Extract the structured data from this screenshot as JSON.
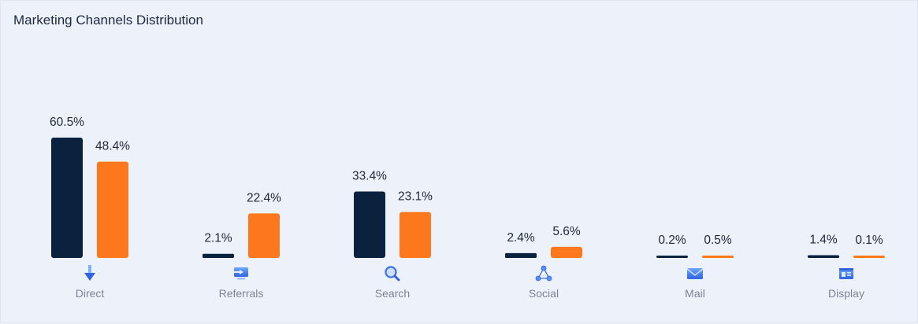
{
  "card": {
    "title": "Marketing Channels Distribution"
  },
  "colors": {
    "series_a": "#0b223f",
    "series_b": "#fd781c",
    "background": "#edf1fa"
  },
  "chart_data": {
    "type": "bar",
    "title": "Marketing Channels Distribution",
    "categories": [
      "Direct",
      "Referrals",
      "Search",
      "Social",
      "Mail",
      "Display"
    ],
    "icons": [
      "download-arrow-icon",
      "monitor-icon",
      "magnifier-icon",
      "share-network-icon",
      "envelope-icon",
      "display-ad-icon"
    ],
    "series": [
      {
        "values": [
          60.5,
          2.1,
          33.4,
          2.4,
          0.2,
          1.4
        ],
        "labels": [
          "60.5%",
          "2.1%",
          "33.4%",
          "2.4%",
          "0.2%",
          "1.4%"
        ]
      },
      {
        "values": [
          48.4,
          22.4,
          23.1,
          5.6,
          0.5,
          0.1
        ],
        "labels": [
          "48.4%",
          "22.4%",
          "23.1%",
          "5.6%",
          "0.5%",
          "0.1%"
        ]
      }
    ],
    "unit": "%",
    "grid": false,
    "legend": "none",
    "ylim": [
      0,
      60.5
    ]
  }
}
